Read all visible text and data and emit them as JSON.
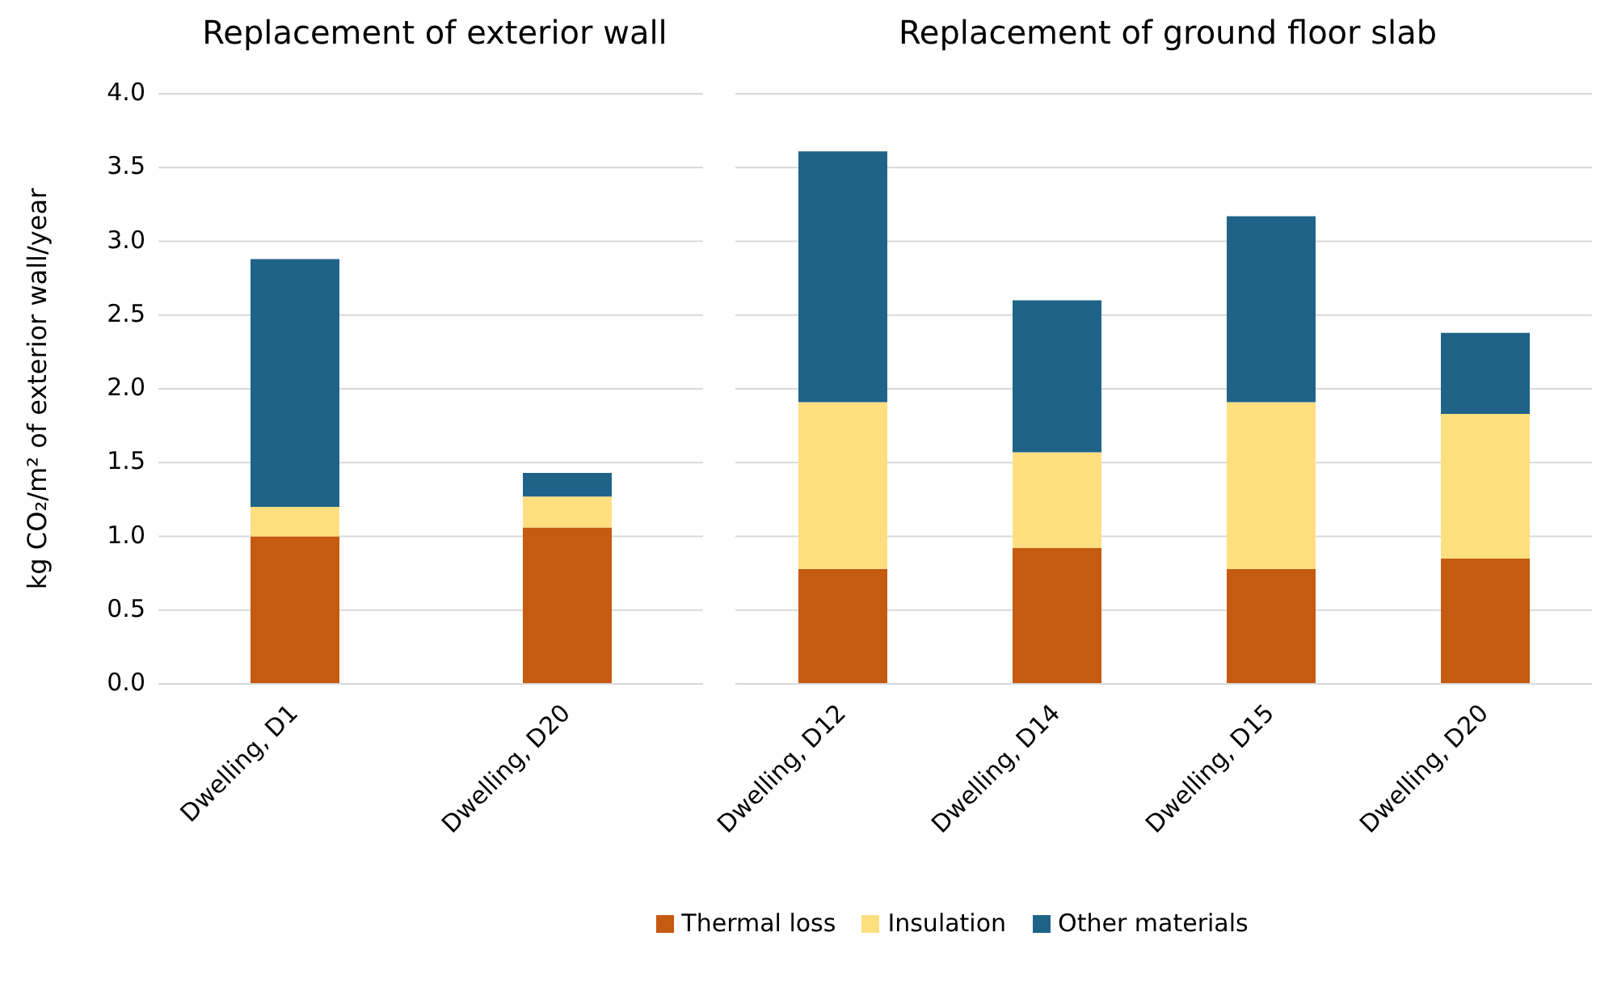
{
  "chart_data": [
    {
      "type": "bar",
      "title": "Replacement of exterior wall",
      "ylabel": "kg CO₂/m² of exterior wall/year",
      "categories": [
        "Dwelling, D1",
        "Dwelling, D20"
      ],
      "stacked": true,
      "ylim": [
        0,
        4
      ],
      "yticks": [
        {
          "value": 0,
          "label": "0.0"
        },
        {
          "value": 0.5,
          "label": "0.5"
        },
        {
          "value": 1,
          "label": "1.0"
        },
        {
          "value": 1.5,
          "label": "1.5"
        },
        {
          "value": 2,
          "label": "2.0"
        },
        {
          "value": 2.5,
          "label": "2.5"
        },
        {
          "value": 3,
          "label": "3.0"
        },
        {
          "value": 3.5,
          "label": "3.5"
        },
        {
          "value": 4,
          "label": "4.0"
        }
      ],
      "grid": "y",
      "legend": "bottom",
      "series": [
        {
          "name": "Thermal loss",
          "color": "#c55a11",
          "values": [
            1.0,
            1.06
          ]
        },
        {
          "name": "Insulation",
          "color": "#ffdf80",
          "values": [
            0.2,
            0.21
          ]
        },
        {
          "name": "Other materials",
          "color": "#1f6488",
          "values": [
            1.68,
            0.16
          ]
        }
      ]
    },
    {
      "type": "bar",
      "title": "Replacement of ground floor slab",
      "categories": [
        "Dwelling, D12",
        "Dwelling, D14",
        "Dwelling, D15",
        "Dwelling, D20"
      ],
      "stacked": true,
      "ylim": [
        0,
        4
      ],
      "yticks": [
        {
          "value": 0,
          "label": null
        },
        {
          "value": 0.5,
          "label": null
        },
        {
          "value": 1,
          "label": null
        },
        {
          "value": 1.5,
          "label": null
        },
        {
          "value": 2,
          "label": null
        },
        {
          "value": 2.5,
          "label": null
        },
        {
          "value": 3,
          "label": null
        },
        {
          "value": 3.5,
          "label": null
        },
        {
          "value": 4,
          "label": null
        }
      ],
      "grid": "y",
      "tick_labels": "x",
      "legend": "bottom",
      "series": [
        {
          "name": "Thermal loss",
          "color": "#c55a11",
          "values": [
            0.78,
            0.92,
            0.78,
            0.85
          ]
        },
        {
          "name": "Insulation",
          "color": "#ffdf80",
          "values": [
            1.13,
            0.65,
            1.13,
            0.98
          ]
        },
        {
          "name": "Other materials",
          "color": "#1f6488",
          "values": [
            1.7,
            1.03,
            1.26,
            0.55
          ]
        }
      ]
    }
  ]
}
